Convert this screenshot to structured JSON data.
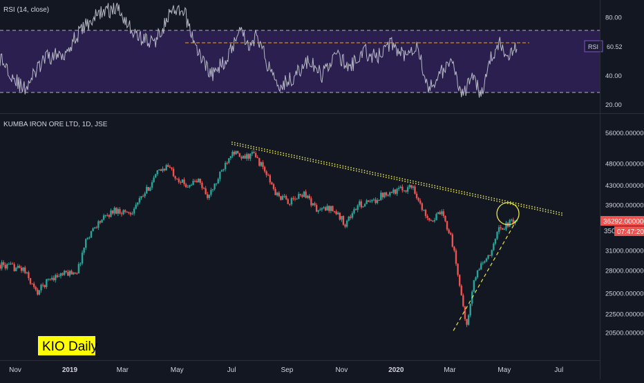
{
  "colors": {
    "background": "#131722",
    "rsi_band": "#2a1f4f",
    "rsi_line": "#b8bbc6",
    "rsi_level_line": "#f5a623",
    "candle_up": "#26a69a",
    "candle_down": "#ef5350",
    "trendline_resistance": "#e8e84a",
    "trendline_support": "#e8e84a",
    "highlight_circle": "#e8e84a",
    "price_badge": "#ef5350",
    "text": "#d1d4dc",
    "watermark_bg": "#ffff00",
    "watermark_text": "#000000"
  },
  "rsi_panel": {
    "title": "RSI (14, close)",
    "value_label": "RSI",
    "value": "60.52"
  },
  "price_panel": {
    "title": "KUMBA IRON ORE LTD, 1D, JSE",
    "last_price": "36292.000000",
    "countdown": "07:47:20",
    "partial_tick": "350"
  },
  "watermark": {
    "text": "KIO Daily"
  },
  "chart_data": [
    {
      "type": "line",
      "name": "RSI (14, close)",
      "ylim": [
        14,
        92
      ],
      "y_ticks": [
        "80.00",
        "40.00",
        "20.00"
      ],
      "y_tick_values": [
        80,
        40,
        20
      ],
      "band": [
        30,
        70
      ],
      "resistance_level": 63,
      "last_value": 60.52,
      "x_start": "2018-10-15",
      "x_end": "2020-05-15",
      "keypoints": [
        [
          "2018-10-15",
          52
        ],
        [
          "2018-11-10",
          30
        ],
        [
          "2018-12-05",
          52
        ],
        [
          "2018-12-25",
          55
        ],
        [
          "2019-01-15",
          72
        ],
        [
          "2019-02-05",
          84
        ],
        [
          "2019-02-25",
          86
        ],
        [
          "2019-03-15",
          68
        ],
        [
          "2019-04-05",
          62
        ],
        [
          "2019-04-25",
          84
        ],
        [
          "2019-05-10",
          82
        ],
        [
          "2019-05-25",
          55
        ],
        [
          "2019-06-10",
          40
        ],
        [
          "2019-06-25",
          52
        ],
        [
          "2019-07-01",
          58
        ],
        [
          "2019-07-10",
          75
        ],
        [
          "2019-07-20",
          60
        ],
        [
          "2019-07-30",
          68
        ],
        [
          "2019-08-10",
          48
        ],
        [
          "2019-08-25",
          33
        ],
        [
          "2019-09-10",
          40
        ],
        [
          "2019-09-25",
          50
        ],
        [
          "2019-10-10",
          40
        ],
        [
          "2019-10-25",
          55
        ],
        [
          "2019-11-10",
          45
        ],
        [
          "2019-11-25",
          57
        ],
        [
          "2019-12-10",
          52
        ],
        [
          "2019-12-25",
          62
        ],
        [
          "2020-01-10",
          55
        ],
        [
          "2020-01-25",
          62
        ],
        [
          "2020-02-05",
          30
        ],
        [
          "2020-02-20",
          42
        ],
        [
          "2020-03-05",
          48
        ],
        [
          "2020-03-15",
          26
        ],
        [
          "2020-03-25",
          38
        ],
        [
          "2020-04-05",
          28
        ],
        [
          "2020-04-15",
          50
        ],
        [
          "2020-04-25",
          62
        ],
        [
          "2020-05-05",
          55
        ],
        [
          "2020-05-15",
          61
        ]
      ]
    },
    {
      "type": "candlestick",
      "name": "KUMBA IRON ORE LTD, 1D, JSE",
      "ylim": [
        18500,
        58200
      ],
      "y_ticks": [
        "56000.00000",
        "48000.00000",
        "43000.00000",
        "39000.00000",
        "31000.00000",
        "28000.00000",
        "25000.00000",
        "22500.00000",
        "20500.00000"
      ],
      "y_tick_values": [
        56000,
        48000,
        43000,
        39000,
        31000,
        28000,
        25000,
        22500,
        20500
      ],
      "x_ticks": [
        "Nov",
        "2019",
        "Mar",
        "May",
        "Jul",
        "Sep",
        "Nov",
        "2020",
        "Mar",
        "May",
        "Jul"
      ],
      "x_tick_dates": [
        "2018-11-01",
        "2019-01-01",
        "2019-03-01",
        "2019-05-01",
        "2019-07-01",
        "2019-09-01",
        "2019-11-01",
        "2020-01-01",
        "2020-03-01",
        "2020-05-01",
        "2020-07-01"
      ],
      "x_start": "2018-10-15",
      "x_end": "2020-05-15",
      "last_close": 36292,
      "price_keypoints": [
        [
          "2018-10-15",
          28800
        ],
        [
          "2018-11-10",
          28200
        ],
        [
          "2018-11-25",
          25000
        ],
        [
          "2018-12-10",
          27000
        ],
        [
          "2018-12-25",
          27500
        ],
        [
          "2019-01-10",
          28000
        ],
        [
          "2019-01-20",
          33000
        ],
        [
          "2019-02-01",
          35500
        ],
        [
          "2019-02-20",
          38000
        ],
        [
          "2019-03-10",
          37500
        ],
        [
          "2019-03-25",
          41000
        ],
        [
          "2019-04-10",
          46000
        ],
        [
          "2019-04-20",
          47500
        ],
        [
          "2019-04-30",
          45000
        ],
        [
          "2019-05-10",
          43000
        ],
        [
          "2019-05-25",
          44000
        ],
        [
          "2019-06-05",
          40500
        ],
        [
          "2019-06-15",
          44000
        ],
        [
          "2019-06-25",
          48500
        ],
        [
          "2019-07-02",
          51500
        ],
        [
          "2019-07-12",
          49000
        ],
        [
          "2019-07-25",
          50500
        ],
        [
          "2019-08-05",
          47000
        ],
        [
          "2019-08-20",
          41000
        ],
        [
          "2019-09-05",
          39500
        ],
        [
          "2019-09-20",
          41500
        ],
        [
          "2019-10-05",
          37800
        ],
        [
          "2019-10-20",
          38500
        ],
        [
          "2019-11-05",
          35500
        ],
        [
          "2019-11-20",
          39000
        ],
        [
          "2019-12-05",
          39500
        ],
        [
          "2019-12-20",
          41500
        ],
        [
          "2020-01-05",
          42000
        ],
        [
          "2020-01-20",
          42800
        ],
        [
          "2020-01-30",
          38000
        ],
        [
          "2020-02-10",
          36000
        ],
        [
          "2020-02-20",
          37500
        ],
        [
          "2020-03-02",
          33500
        ],
        [
          "2020-03-12",
          26000
        ],
        [
          "2020-03-20",
          21000
        ],
        [
          "2020-03-28",
          26500
        ],
        [
          "2020-04-05",
          29000
        ],
        [
          "2020-04-15",
          30000
        ],
        [
          "2020-04-22",
          34000
        ],
        [
          "2020-05-01",
          35000
        ],
        [
          "2020-05-15",
          36292
        ]
      ],
      "trendlines": [
        {
          "name": "resistance",
          "style": "dotted",
          "from": [
            "2019-07-01",
            53200
          ],
          "to": [
            "2020-07-05",
            37200
          ]
        },
        {
          "name": "support",
          "style": "dashed",
          "from": [
            "2020-03-05",
            20700
          ],
          "to": [
            "2020-05-15",
            36200
          ]
        }
      ],
      "highlight": {
        "center": [
          "2020-05-05",
          37300
        ]
      }
    }
  ]
}
